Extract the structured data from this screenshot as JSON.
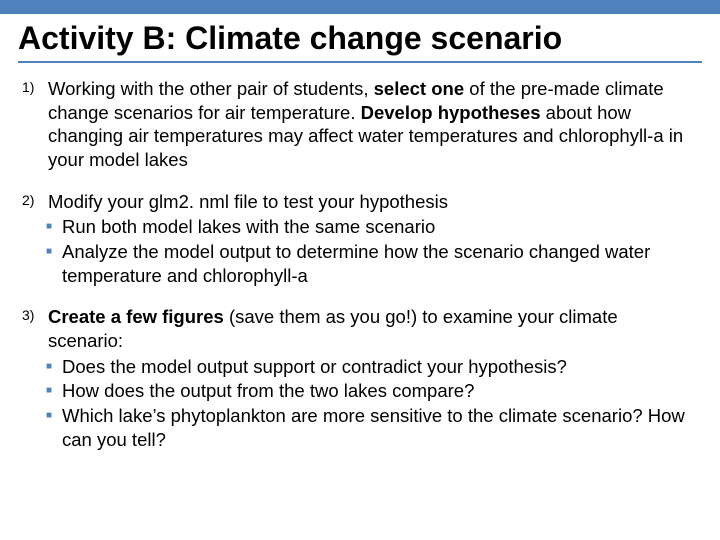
{
  "colors": {
    "accent": "#4f81bd",
    "text": "#000000",
    "background": "#ffffff"
  },
  "title": "Activity B: Climate change scenario",
  "items": [
    {
      "marker": "1)",
      "html": "Working with the other pair of students, <b>select one</b> of the pre-made climate change scenarios for air temperature. <b>Develop hypotheses</b> about how changing air temperatures may affect water temperatures and chlorophyll-a in your model lakes",
      "subs": []
    },
    {
      "marker": "2)",
      "html": "Modify your glm2. nml file to test your hypothesis",
      "subs": [
        "Run both model lakes with the same scenario",
        "Analyze the model output to determine how the scenario changed water temperature and chlorophyll-a"
      ]
    },
    {
      "marker": "3)",
      "html": "<b>Create a few figures</b> (save them as you go!) to examine your climate scenario:",
      "subs": [
        "Does the model output support or contradict your hypothesis?",
        "How does the output from the two lakes compare?",
        "Which lake’s phytoplankton are more sensitive to the climate scenario? How can you tell?"
      ]
    }
  ]
}
